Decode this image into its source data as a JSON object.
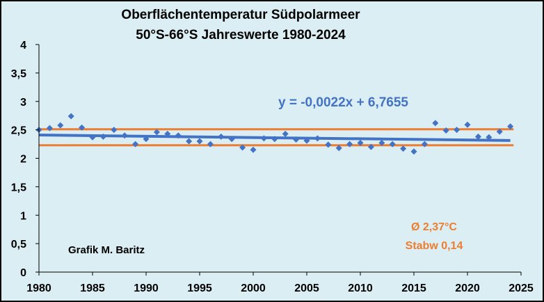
{
  "chart_data": {
    "type": "scatter",
    "title": "Oberflächentemperatur Südpolarmeer",
    "subtitle": "50°S-66°S  Jahreswerte 1980-2024",
    "xlim": [
      1980,
      2025
    ],
    "ylim": [
      0,
      4
    ],
    "x_ticks": [
      "1980",
      "1985",
      "1990",
      "1995",
      "2000",
      "2005",
      "2010",
      "2015",
      "2020",
      "2025"
    ],
    "y_ticks": [
      "0",
      "0,5",
      "1",
      "1,5",
      "2",
      "2,5",
      "3",
      "3,5",
      "4"
    ],
    "grid": false,
    "series": [
      {
        "marker": "diamond",
        "color": "#4472c4",
        "points": [
          {
            "x": 1980,
            "y": 2.5
          },
          {
            "x": 1981,
            "y": 2.53
          },
          {
            "x": 1982,
            "y": 2.58
          },
          {
            "x": 1983,
            "y": 2.74
          },
          {
            "x": 1984,
            "y": 2.54
          },
          {
            "x": 1985,
            "y": 2.37
          },
          {
            "x": 1986,
            "y": 2.38
          },
          {
            "x": 1987,
            "y": 2.5
          },
          {
            "x": 1988,
            "y": 2.4
          },
          {
            "x": 1989,
            "y": 2.25
          },
          {
            "x": 1990,
            "y": 2.34
          },
          {
            "x": 1991,
            "y": 2.46
          },
          {
            "x": 1992,
            "y": 2.43
          },
          {
            "x": 1993,
            "y": 2.4
          },
          {
            "x": 1994,
            "y": 2.3
          },
          {
            "x": 1995,
            "y": 2.3
          },
          {
            "x": 1996,
            "y": 2.25
          },
          {
            "x": 1997,
            "y": 2.38
          },
          {
            "x": 1998,
            "y": 2.34
          },
          {
            "x": 1999,
            "y": 2.19
          },
          {
            "x": 2000,
            "y": 2.15
          },
          {
            "x": 2001,
            "y": 2.35
          },
          {
            "x": 2002,
            "y": 2.34
          },
          {
            "x": 2003,
            "y": 2.43
          },
          {
            "x": 2004,
            "y": 2.33
          },
          {
            "x": 2005,
            "y": 2.31
          },
          {
            "x": 2006,
            "y": 2.35
          },
          {
            "x": 2007,
            "y": 2.24
          },
          {
            "x": 2008,
            "y": 2.18
          },
          {
            "x": 2009,
            "y": 2.25
          },
          {
            "x": 2010,
            "y": 2.27
          },
          {
            "x": 2011,
            "y": 2.2
          },
          {
            "x": 2012,
            "y": 2.27
          },
          {
            "x": 2013,
            "y": 2.25
          },
          {
            "x": 2014,
            "y": 2.17
          },
          {
            "x": 2015,
            "y": 2.12
          },
          {
            "x": 2016,
            "y": 2.25
          },
          {
            "x": 2017,
            "y": 2.62
          },
          {
            "x": 2018,
            "y": 2.49
          },
          {
            "x": 2019,
            "y": 2.5
          },
          {
            "x": 2020,
            "y": 2.59
          },
          {
            "x": 2021,
            "y": 2.38
          },
          {
            "x": 2022,
            "y": 2.37
          },
          {
            "x": 2023,
            "y": 2.47
          },
          {
            "x": 2024,
            "y": 2.56
          }
        ]
      }
    ],
    "trendline": {
      "color": "#4472c4",
      "slope": -0.0022,
      "intercept": 6.7655,
      "x_range": [
        1980,
        2024
      ],
      "label": "y = -0,0022x + 6,7655"
    },
    "reference_lines": [
      {
        "y": 2.51,
        "color": "#ed7d31"
      },
      {
        "y": 2.23,
        "color": "#ed7d31"
      }
    ],
    "annotations": {
      "mean": "Ø 2,37°C",
      "stdev": "Stabw 0,14",
      "credit": "Grafik M. Baritz"
    }
  }
}
